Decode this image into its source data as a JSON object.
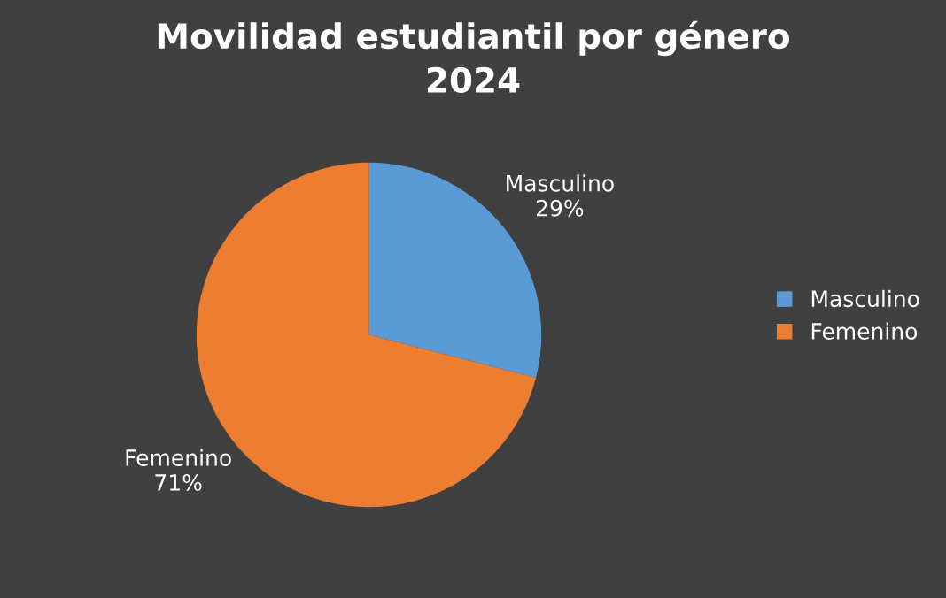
{
  "chart_data": {
    "type": "pie",
    "title": "Movilidad estudiantil por género\n2024",
    "categories": [
      "Masculino",
      "Femenino"
    ],
    "values": [
      29,
      71
    ],
    "value_labels": [
      "29%",
      "71%"
    ],
    "colors": [
      "#5b9bd5",
      "#ed7d31"
    ],
    "legend": "right"
  }
}
